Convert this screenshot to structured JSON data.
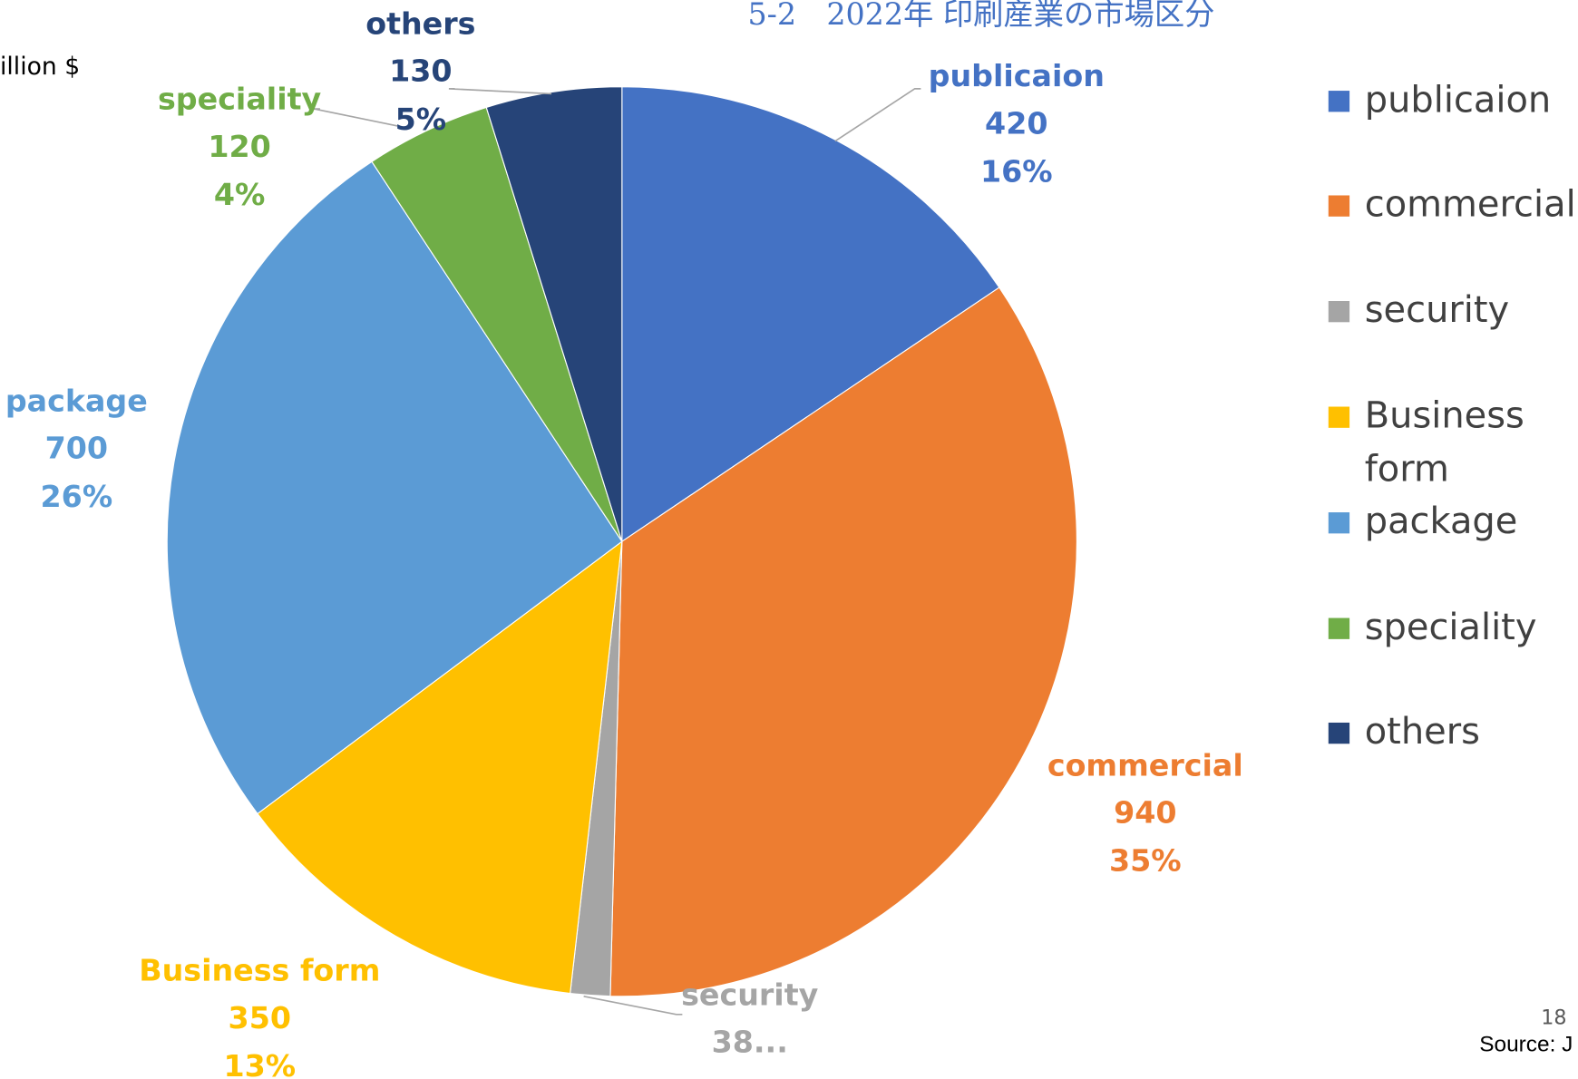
{
  "chart_data": {
    "type": "pie",
    "title": "5-2　2022年 印刷産業の市場区分",
    "unit_label": "illion $",
    "categories": [
      "publicaion",
      "commercial",
      "security",
      "Business form",
      "package",
      "speciality",
      "others"
    ],
    "values": [
      420,
      940,
      38,
      350,
      700,
      120,
      130
    ],
    "value_labels": [
      "420",
      "940",
      "38...",
      "350",
      "700",
      "120",
      "130"
    ],
    "percent_labels": [
      "16%",
      "35%",
      null,
      "13%",
      "26%",
      "4%",
      "5%"
    ],
    "colors": [
      "#4472c4",
      "#ed7d31",
      "#a5a5a5",
      "#ffc000",
      "#5b9bd5",
      "#70ad47",
      "#264478"
    ],
    "legend": "right",
    "page_number": "18",
    "source": "Source: J"
  }
}
